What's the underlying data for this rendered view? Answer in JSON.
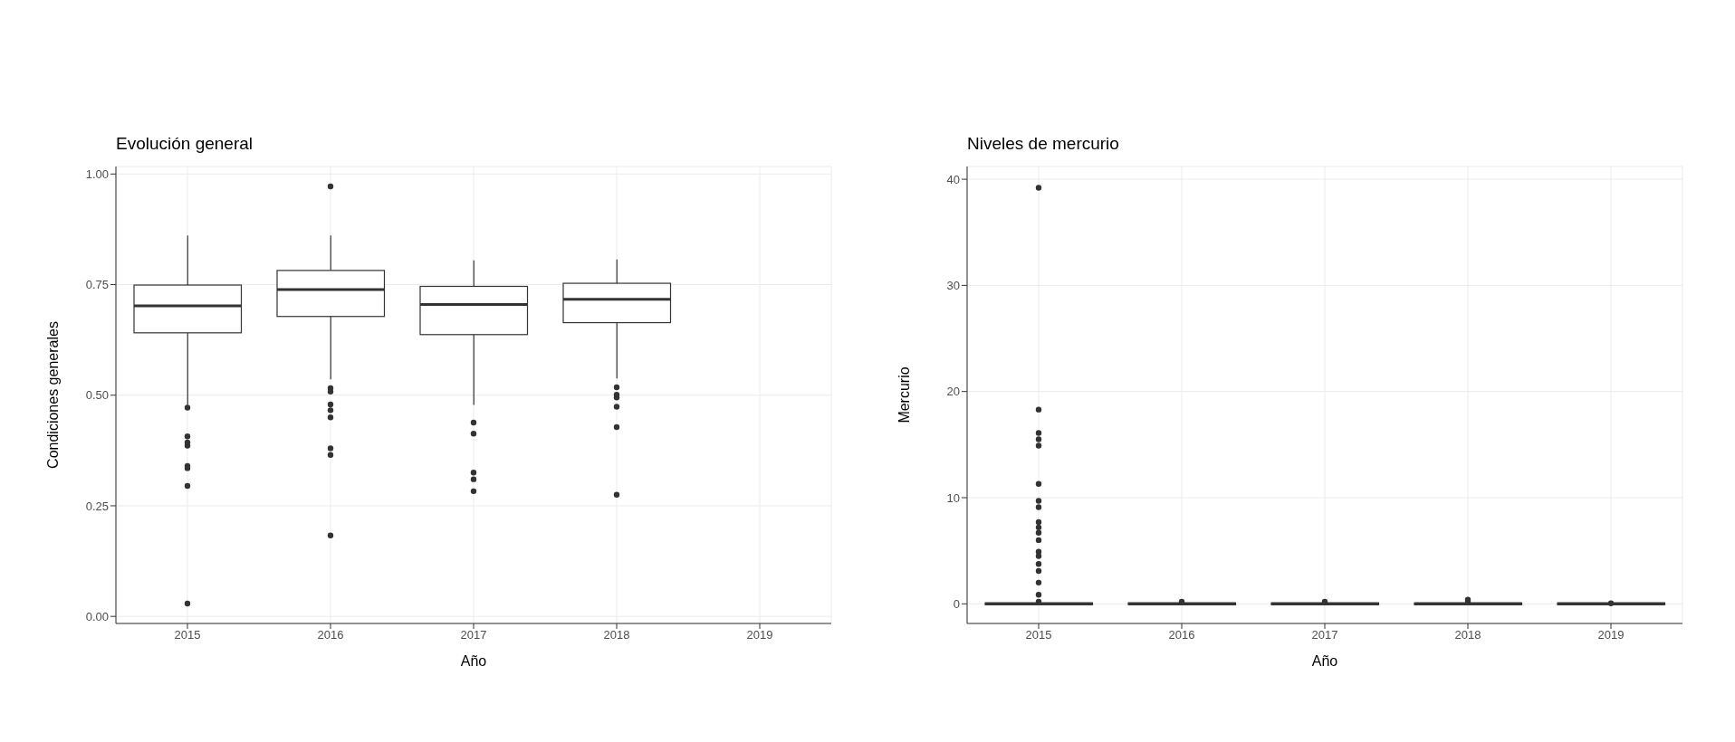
{
  "chart_data": [
    {
      "type": "box",
      "title": "Evolución general",
      "xlabel": "Año",
      "ylabel": "Condiciones generales",
      "categories": [
        "2015",
        "2016",
        "2017",
        "2018",
        "2019"
      ],
      "color": "#333333",
      "grid": true,
      "ylim": [
        -0.016,
        1.017
      ],
      "yticks": [
        {
          "value": 0,
          "label": "0.00"
        },
        {
          "value": 0.25,
          "label": "0.25"
        },
        {
          "value": 0.5,
          "label": "0.50"
        },
        {
          "value": 0.75,
          "label": "0.75"
        },
        {
          "value": 1,
          "label": "1.00"
        }
      ],
      "boxes": [
        {
          "low": 0.478,
          "q1": 0.641,
          "median": 0.702,
          "q3": 0.749,
          "high": 0.861,
          "outliers": [
            0.472,
            0.407,
            0.393,
            0.386,
            0.34,
            0.335,
            0.295,
            0.029
          ]
        },
        {
          "low": 0.536,
          "q1": 0.678,
          "median": 0.739,
          "q3": 0.782,
          "high": 0.861,
          "outliers": [
            0.972,
            0.516,
            0.508,
            0.479,
            0.466,
            0.45,
            0.38,
            0.365,
            0.183
          ]
        },
        {
          "low": 0.478,
          "q1": 0.637,
          "median": 0.705,
          "q3": 0.746,
          "high": 0.805,
          "outliers": [
            0.438,
            0.413,
            0.325,
            0.31,
            0.283
          ]
        },
        {
          "low": 0.538,
          "q1": 0.664,
          "median": 0.717,
          "q3": 0.753,
          "high": 0.807,
          "outliers": [
            0.518,
            0.501,
            0.495,
            0.474,
            0.428,
            0.275
          ]
        },
        null
      ]
    },
    {
      "type": "box",
      "title": "Niveles de mercurio",
      "xlabel": "Año",
      "ylabel": "Mercurio",
      "categories": [
        "2015",
        "2016",
        "2017",
        "2018",
        "2019"
      ],
      "color": "#333333",
      "grid": true,
      "ylim": [
        -1.85,
        41.2
      ],
      "yticks": [
        0,
        10,
        20,
        30,
        40
      ],
      "boxes": [
        {
          "low": 0,
          "q1": 0,
          "median": 0,
          "q3": 0,
          "high": 0,
          "outliers": [
            39.2,
            18.3,
            16.1,
            15.5,
            14.9,
            11.3,
            9.7,
            9.1,
            7.7,
            7.2,
            6.7,
            6.0,
            4.9,
            4.5,
            3.75,
            3.1,
            2.0,
            0.86,
            0.2
          ]
        },
        {
          "low": 0,
          "q1": 0,
          "median": 0,
          "q3": 0,
          "high": 0,
          "outliers": [
            0.2
          ]
        },
        {
          "low": 0,
          "q1": 0,
          "median": 0,
          "q3": 0,
          "high": 0,
          "outliers": [
            0.2
          ]
        },
        {
          "low": 0,
          "q1": 0,
          "median": 0,
          "q3": 0,
          "high": 0,
          "outliers": [
            0.4,
            0.2
          ]
        },
        {
          "low": 0,
          "q1": 0,
          "median": 0,
          "q3": 0,
          "high": 0,
          "outliers": [
            0.05
          ]
        }
      ]
    }
  ]
}
